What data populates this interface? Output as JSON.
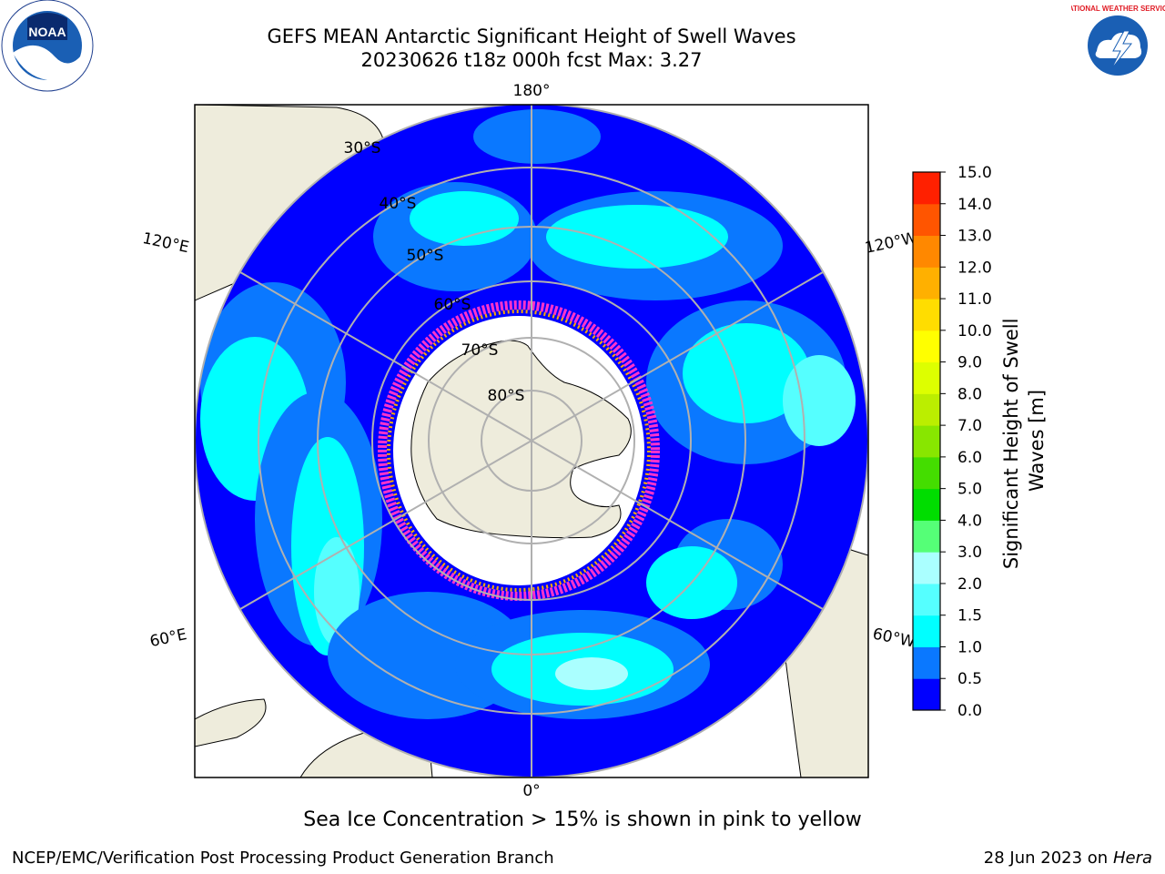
{
  "title_line1": "GEFS MEAN Antarctic Significant Height of Swell Waves",
  "title_line2": "20230626 t18z 000h fcst   Max: 3.27",
  "footnote": "Sea Ice Concentration > 15% is shown in pink to yellow",
  "credit_left": "NCEP/EMC/Verification Post Processing Product Generation Branch",
  "credit_right_date": "28 Jun 2023 on",
  "credit_right_host": "Hera",
  "logos": {
    "noaa_text": "NOAA",
    "nws_text": "NATIONAL WEATHER SERVICE"
  },
  "map": {
    "projection": "south-polar-stereographic",
    "longitude_labels": [
      "180°",
      "120°E",
      "120°W",
      "60°E",
      "60°W",
      "0°"
    ],
    "latitude_labels": [
      "30°S",
      "40°S",
      "50°S",
      "60°S",
      "70°S",
      "80°S"
    ],
    "colors": {
      "land": "#eeecdc",
      "ice_edge": [
        "#ff33cc",
        "#ffaa00",
        "#ffff66"
      ]
    }
  },
  "colorbar": {
    "label": "Significant Height of Swell Waves [m]",
    "ticks": [
      "0.0",
      "0.5",
      "1.0",
      "1.5",
      "2.0",
      "3.0",
      "4.0",
      "5.0",
      "6.0",
      "7.0",
      "8.0",
      "9.0",
      "10.0",
      "11.0",
      "12.0",
      "13.0",
      "14.0",
      "15.0"
    ],
    "colors": [
      "#0000ff",
      "#0a78ff",
      "#00ffff",
      "#55ffff",
      "#aaffff",
      "#55ff77",
      "#00dd00",
      "#44dd00",
      "#88e600",
      "#bbee00",
      "#ddff00",
      "#ffff00",
      "#ffdd00",
      "#ffb000",
      "#ff8800",
      "#ff5500",
      "#ff2000"
    ]
  }
}
